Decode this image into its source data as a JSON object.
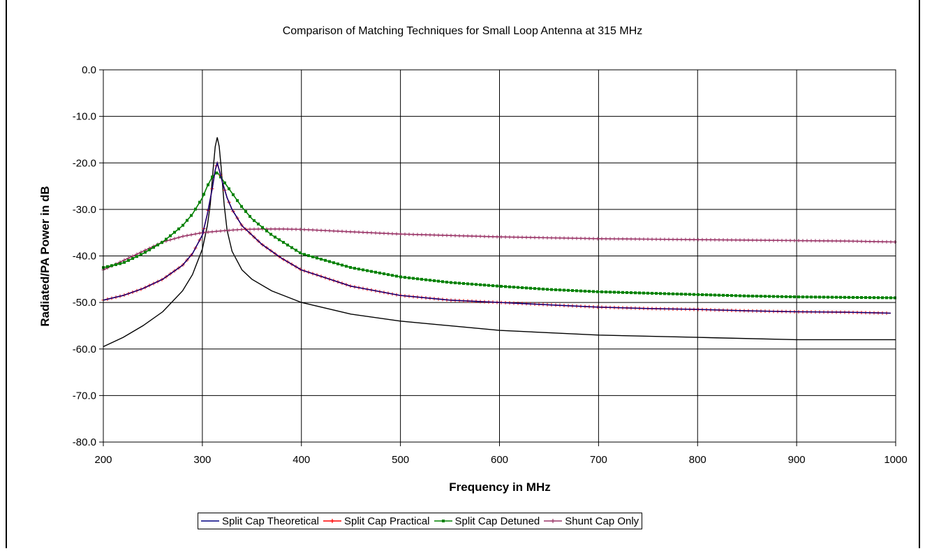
{
  "chart_data": {
    "type": "line",
    "title": "Comparison of Matching Techniques for Small Loop Antenna at 315 MHz",
    "xlabel": "Frequency in MHz",
    "ylabel": "Radiated/PA Power in dB",
    "xlim": [
      200,
      1000
    ],
    "ylim": [
      -80,
      0
    ],
    "x_ticks": [
      "200",
      "300",
      "400",
      "500",
      "600",
      "700",
      "800",
      "900",
      "1000"
    ],
    "y_ticks": [
      "0.0",
      "-10.0",
      "-20.0",
      "-30.0",
      "-40.0",
      "-50.0",
      "-60.0",
      "-70.0",
      "-80.0"
    ],
    "grid": true,
    "legend_position": "bottom",
    "series": [
      {
        "name": "Split Cap Theoretical",
        "color": "#000080",
        "marker": "none",
        "x": [
          200,
          220,
          240,
          260,
          280,
          290,
          300,
          305,
          310,
          313,
          315,
          317,
          320,
          325,
          330,
          340,
          350,
          360,
          380,
          400,
          450,
          500,
          550,
          600,
          650,
          700,
          750,
          800,
          850,
          900,
          950,
          995
        ],
        "y": [
          -49.5,
          -48.5,
          -47.0,
          -45.0,
          -42.0,
          -39.5,
          -35.5,
          -31.0,
          -25.5,
          -21.5,
          -20.0,
          -21.5,
          -24.0,
          -27.5,
          -30.0,
          -33.5,
          -35.5,
          -37.5,
          -40.5,
          -43.0,
          -46.5,
          -48.5,
          -49.5,
          -50.0,
          -50.5,
          -51.0,
          -51.3,
          -51.5,
          -51.8,
          -52.0,
          -52.1,
          -52.3
        ]
      },
      {
        "name": "Split Cap Practical",
        "color": "#ff0000",
        "marker": "plus",
        "x": [
          200,
          220,
          240,
          260,
          280,
          290,
          300,
          305,
          310,
          313,
          315,
          317,
          320,
          325,
          330,
          340,
          350,
          360,
          380,
          400,
          450,
          500,
          550,
          600,
          650,
          700,
          750,
          800,
          850,
          900,
          950,
          995
        ],
        "y": [
          -49.5,
          -48.5,
          -47.0,
          -45.0,
          -42.0,
          -39.5,
          -35.5,
          -31.0,
          -25.5,
          -21.5,
          -20.0,
          -21.5,
          -24.0,
          -27.5,
          -30.0,
          -33.5,
          -35.5,
          -37.5,
          -40.5,
          -43.0,
          -46.5,
          -48.5,
          -49.5,
          -50.0,
          -50.5,
          -51.0,
          -51.3,
          -51.5,
          -51.8,
          -52.0,
          -52.1,
          -52.3
        ]
      },
      {
        "name": "Split Cap Detuned",
        "color": "#008000",
        "marker": "square",
        "x": [
          200,
          220,
          240,
          260,
          280,
          290,
          300,
          305,
          310,
          315,
          320,
          330,
          340,
          350,
          370,
          400,
          450,
          500,
          550,
          600,
          650,
          700,
          750,
          800,
          850,
          900,
          950,
          1000
        ],
        "y": [
          -42.5,
          -41.5,
          -39.5,
          -37.0,
          -33.5,
          -31.0,
          -27.5,
          -25.0,
          -23.0,
          -22.0,
          -23.5,
          -26.5,
          -29.5,
          -32.0,
          -35.5,
          -39.5,
          -42.5,
          -44.5,
          -45.7,
          -46.5,
          -47.2,
          -47.7,
          -48.0,
          -48.3,
          -48.6,
          -48.8,
          -48.9,
          -49.0
        ]
      },
      {
        "name": "Shunt Cap Only",
        "color": "#993366",
        "marker": "plus",
        "x": [
          200,
          220,
          240,
          260,
          280,
          300,
          320,
          340,
          360,
          380,
          400,
          450,
          500,
          550,
          600,
          650,
          700,
          750,
          800,
          850,
          900,
          950,
          1000
        ],
        "y": [
          -43.0,
          -41.0,
          -39.0,
          -37.0,
          -35.8,
          -35.0,
          -34.6,
          -34.3,
          -34.2,
          -34.2,
          -34.3,
          -34.8,
          -35.3,
          -35.6,
          -35.9,
          -36.1,
          -36.3,
          -36.4,
          -36.5,
          -36.6,
          -36.7,
          -36.8,
          -37.0
        ]
      },
      {
        "name": "",
        "color": "#000000",
        "marker": "none",
        "x": [
          200,
          220,
          240,
          260,
          280,
          290,
          300,
          305,
          308,
          311,
          313,
          315,
          317,
          319,
          322,
          325,
          330,
          340,
          350,
          370,
          400,
          450,
          500,
          600,
          700,
          800,
          900,
          1000
        ],
        "y": [
          -59.5,
          -57.5,
          -55.0,
          -52.0,
          -47.5,
          -44.0,
          -38.5,
          -33.5,
          -29.0,
          -21.0,
          -16.5,
          -14.5,
          -16.5,
          -21.0,
          -29.0,
          -34.5,
          -39.0,
          -43.0,
          -45.0,
          -47.5,
          -50.0,
          -52.5,
          -54.0,
          -56.0,
          -57.0,
          -57.5,
          -58.0,
          -58.0
        ]
      }
    ]
  }
}
